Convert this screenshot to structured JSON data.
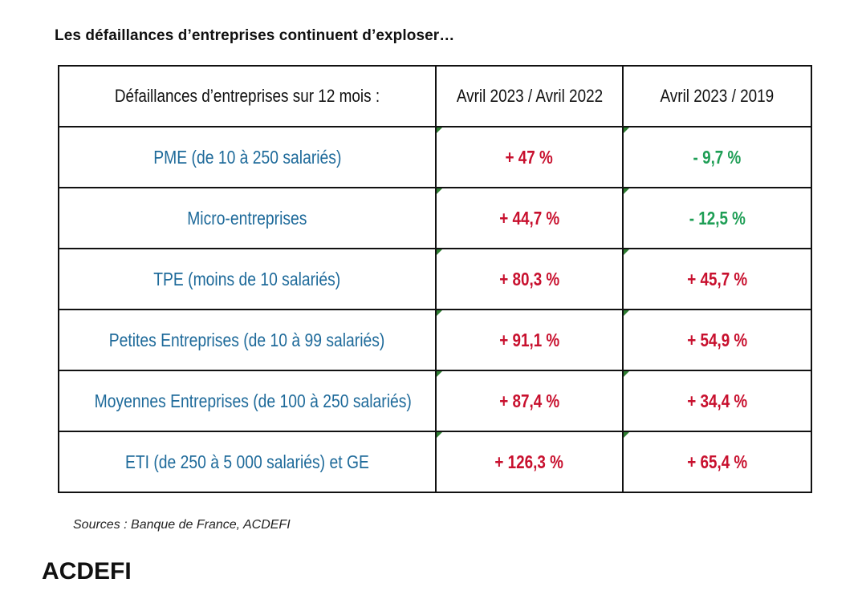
{
  "title": "Les défaillances d’entreprises continuent d’exploser…",
  "table": {
    "headers": [
      "Défaillances d’entreprises sur 12 mois :",
      "Avril 2023 / Avril 2022",
      "Avril 2023 / 2019"
    ],
    "rows": [
      {
        "label": "PME (de 10 à 250 salariés)",
        "v1": "+ 47 %",
        "v2": "- 9,7 %"
      },
      {
        "label": "Micro-entreprises",
        "v1": "+ 44,7 %",
        "v2": "- 12,5 %"
      },
      {
        "label": "TPE (moins de 10 salariés)",
        "v1": "+ 80,3 %",
        "v2": "+ 45,7 %"
      },
      {
        "label": "Petites Entreprises (de 10 à 99 salariés)",
        "v1": "+ 91,1 %",
        "v2": "+ 54,9 %"
      },
      {
        "label": "Moyennes Entreprises (de 100 à 250 salariés)",
        "v1": "+ 87,4 %",
        "v2": "+ 34,4 %"
      },
      {
        "label": "ETI (de 250 à 5 000 salariés) et GE",
        "v1": "+ 126,3 %",
        "v2": "+ 65,4 %"
      }
    ]
  },
  "colors": {
    "label": "#1e6a9a",
    "increase": "#c8102e",
    "decrease": "#1e9e55"
  },
  "source": "Sources : Banque de France, ACDEFI",
  "footer": "ACDEFI"
}
